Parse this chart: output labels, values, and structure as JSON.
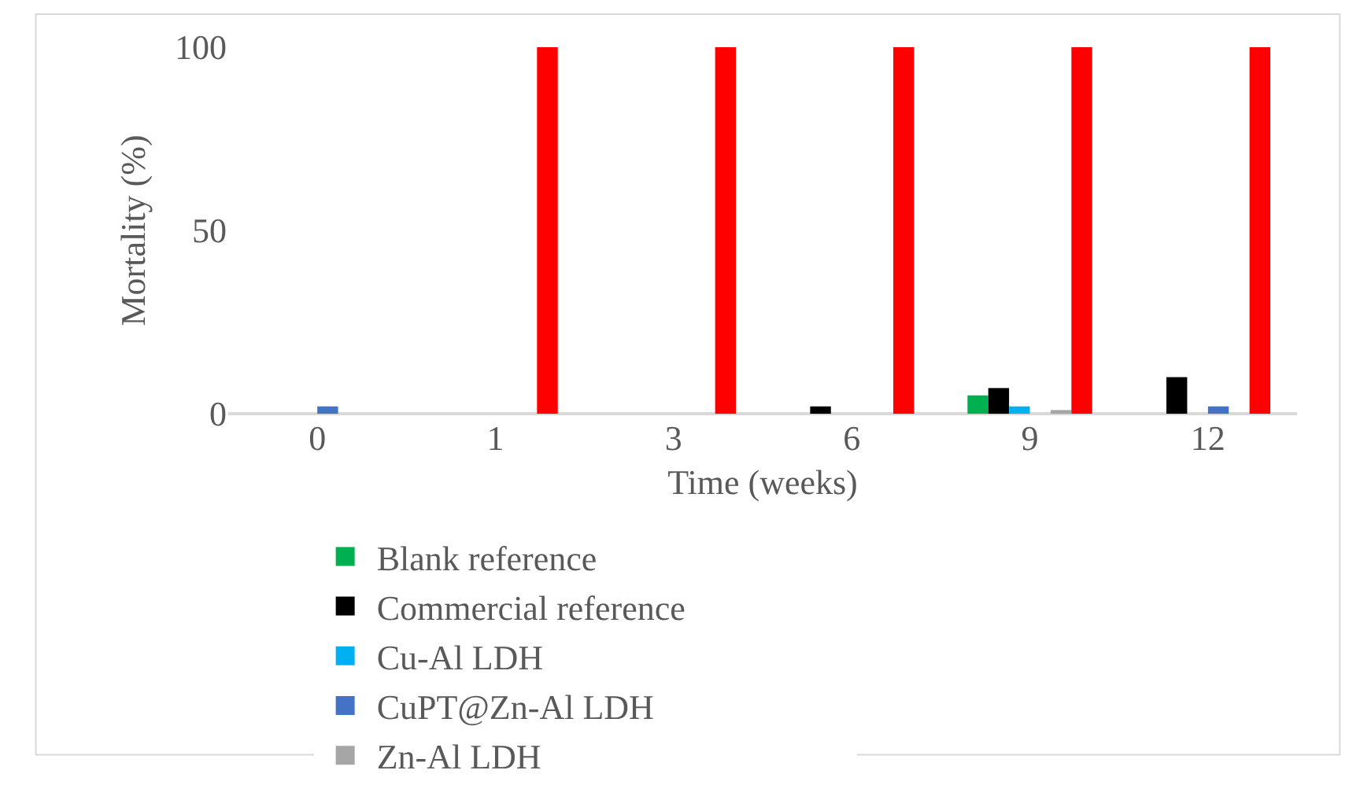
{
  "chart_data": {
    "type": "bar",
    "xlabel": "Time (weeks)",
    "ylabel": "Mortality (%)",
    "categories": [
      "0",
      "1",
      "3",
      "6",
      "9",
      "12"
    ],
    "series": [
      {
        "name": "Blank reference",
        "color": "#00b050",
        "values": [
          0,
          0,
          0,
          0,
          5,
          0
        ]
      },
      {
        "name": "Commercial reference",
        "color": "#000000",
        "values": [
          0,
          0,
          0,
          2,
          7,
          10
        ]
      },
      {
        "name": "Cu-Al LDH",
        "color": "#00b0f0",
        "values": [
          0,
          0,
          0,
          0,
          2,
          0
        ]
      },
      {
        "name": "CuPT@Zn-Al LDH",
        "color": "#4472c4",
        "values": [
          2,
          0,
          0,
          0,
          0,
          2
        ]
      },
      {
        "name": "Zn-Al LDH",
        "color": "#a6a6a6",
        "values": [
          0,
          0,
          0,
          0,
          1,
          0
        ]
      },
      {
        "color": "#ff0000",
        "values": [
          0,
          100,
          100,
          100,
          100,
          100
        ]
      }
    ],
    "ylim": [
      0,
      100
    ],
    "yticks": [
      0,
      50,
      100
    ],
    "grid": false,
    "legend": "bottom"
  }
}
